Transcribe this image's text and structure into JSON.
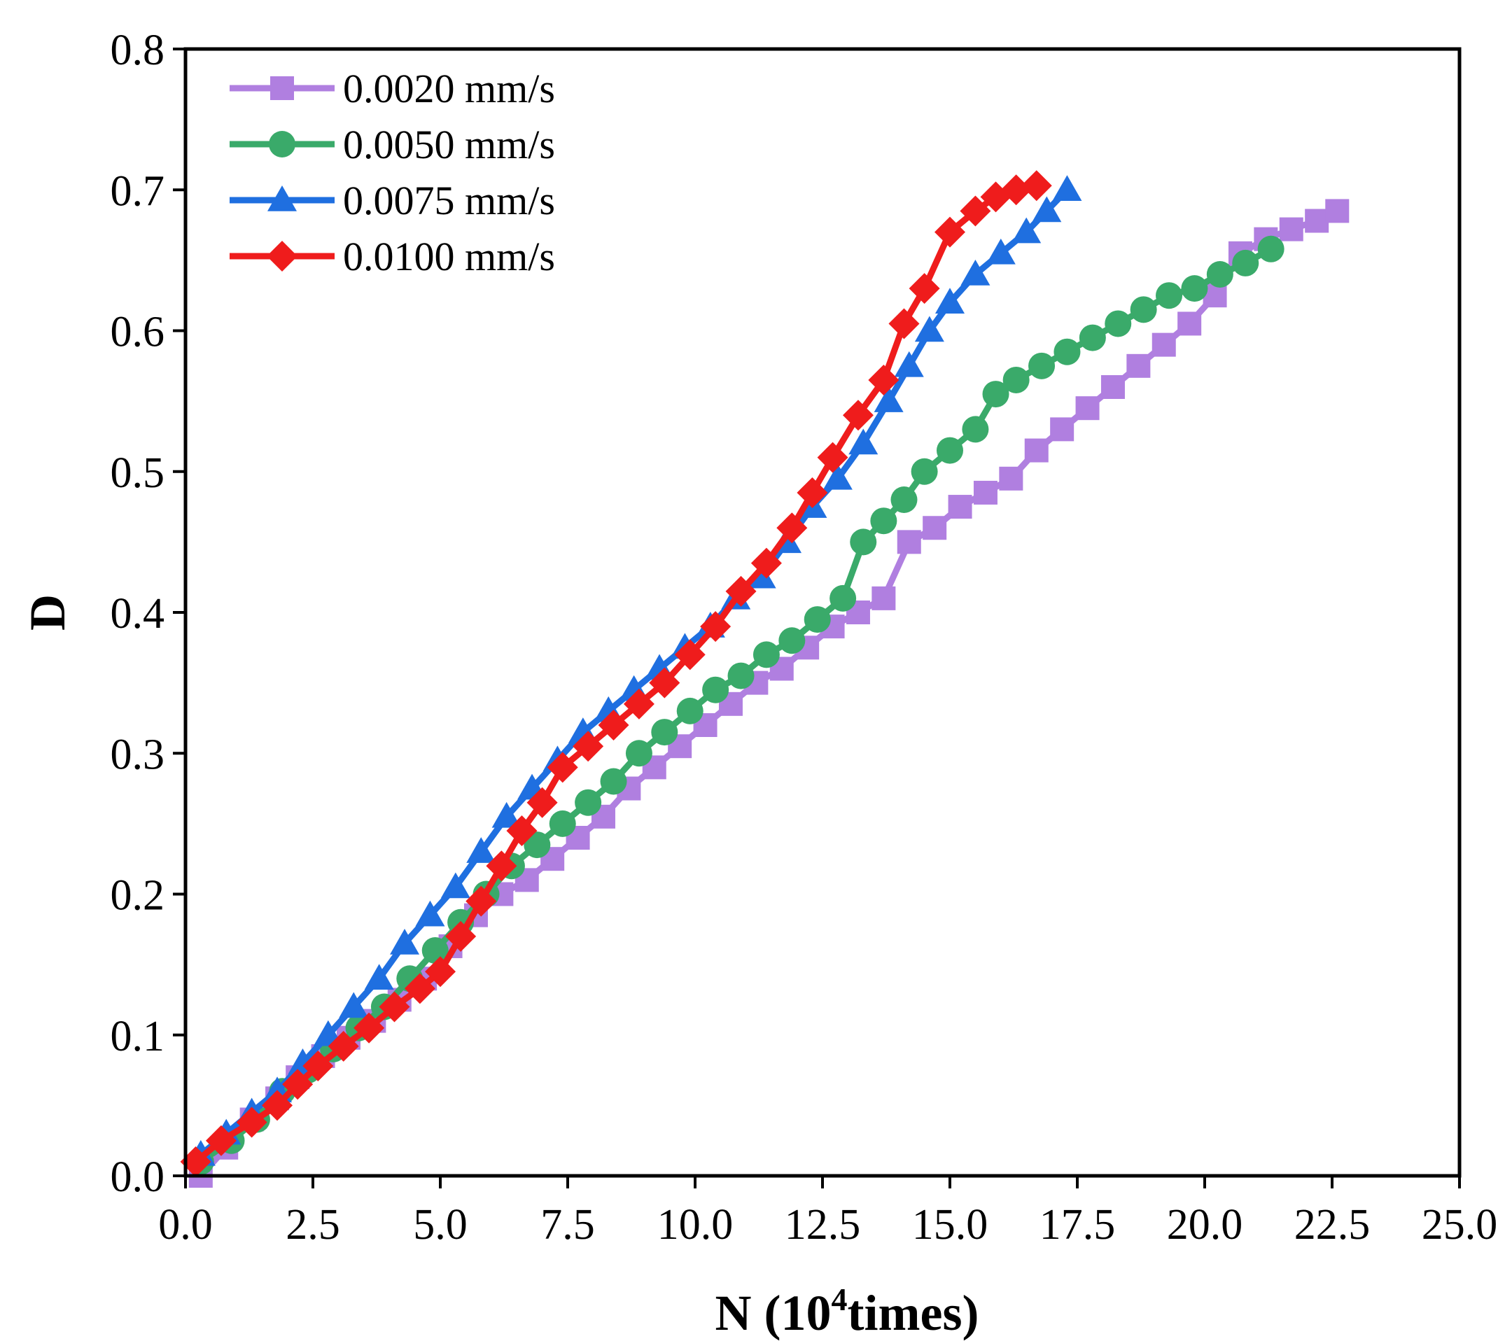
{
  "chart_data": {
    "type": "line",
    "title": "",
    "xlabel": {
      "prefix": "N (10",
      "sup": "4",
      "suffix": "times)"
    },
    "ylabel": "D",
    "xlim": [
      0,
      25
    ],
    "ylim": [
      0,
      0.8
    ],
    "xticks": [
      0,
      2.5,
      5,
      7.5,
      10,
      12.5,
      15,
      17.5,
      20,
      22.5,
      25
    ],
    "xtick_labels": [
      "0.0",
      "2.5",
      "5.0",
      "7.5",
      "10.0",
      "12.5",
      "15.0",
      "17.5",
      "20.0",
      "22.5",
      "25.0"
    ],
    "yticks": [
      0,
      0.1,
      0.2,
      0.3,
      0.4,
      0.5,
      0.6,
      0.7,
      0.8
    ],
    "ytick_labels": [
      "0.0",
      "0.1",
      "0.2",
      "0.3",
      "0.4",
      "0.5",
      "0.6",
      "0.7",
      "0.8"
    ],
    "grid": false,
    "legend_position": "top-left",
    "series": [
      {
        "name": "0.0020 mm/s",
        "color": "#b07fe0",
        "marker": "square",
        "x": [
          0.3,
          0.8,
          1.3,
          1.8,
          2.2,
          2.7,
          3.2,
          3.7,
          4.2,
          4.7,
          5.2,
          5.7,
          6.2,
          6.7,
          7.2,
          7.7,
          8.2,
          8.7,
          9.2,
          9.7,
          10.2,
          10.7,
          11.2,
          11.7,
          12.2,
          12.7,
          13.2,
          13.7,
          14.2,
          14.7,
          15.2,
          15.7,
          16.2,
          16.7,
          17.2,
          17.7,
          18.2,
          18.7,
          19.2,
          19.7,
          20.2,
          20.7,
          21.2,
          21.7,
          22.2,
          22.6
        ],
        "y": [
          0.0,
          0.02,
          0.04,
          0.055,
          0.07,
          0.085,
          0.098,
          0.11,
          0.125,
          0.14,
          0.163,
          0.185,
          0.2,
          0.21,
          0.225,
          0.24,
          0.255,
          0.275,
          0.29,
          0.305,
          0.32,
          0.335,
          0.35,
          0.36,
          0.375,
          0.39,
          0.4,
          0.41,
          0.45,
          0.46,
          0.475,
          0.485,
          0.495,
          0.515,
          0.53,
          0.545,
          0.56,
          0.575,
          0.59,
          0.605,
          0.625,
          0.655,
          0.665,
          0.672,
          0.678,
          0.685
        ]
      },
      {
        "name": "0.0050 mm/s",
        "color": "#3aaa6a",
        "marker": "circle",
        "x": [
          0.3,
          0.9,
          1.4,
          1.9,
          2.4,
          2.9,
          3.4,
          3.9,
          4.4,
          4.9,
          5.4,
          5.9,
          6.4,
          6.9,
          7.4,
          7.9,
          8.4,
          8.9,
          9.4,
          9.9,
          10.4,
          10.9,
          11.4,
          11.9,
          12.4,
          12.9,
          13.3,
          13.7,
          14.1,
          14.5,
          15.0,
          15.5,
          15.9,
          16.3,
          16.8,
          17.3,
          17.8,
          18.3,
          18.8,
          19.3,
          19.8,
          20.3,
          20.8,
          21.3
        ],
        "y": [
          0.01,
          0.025,
          0.04,
          0.06,
          0.075,
          0.09,
          0.105,
          0.12,
          0.14,
          0.16,
          0.18,
          0.2,
          0.22,
          0.235,
          0.25,
          0.265,
          0.28,
          0.3,
          0.315,
          0.33,
          0.345,
          0.355,
          0.37,
          0.38,
          0.395,
          0.41,
          0.45,
          0.465,
          0.48,
          0.5,
          0.515,
          0.53,
          0.555,
          0.565,
          0.575,
          0.585,
          0.595,
          0.605,
          0.615,
          0.625,
          0.63,
          0.64,
          0.648,
          0.658
        ]
      },
      {
        "name": "0.0075 mm/s",
        "color": "#1f6fe0",
        "marker": "triangle",
        "x": [
          0.3,
          0.8,
          1.3,
          1.8,
          2.3,
          2.8,
          3.3,
          3.8,
          4.3,
          4.8,
          5.3,
          5.8,
          6.3,
          6.8,
          7.3,
          7.8,
          8.3,
          8.8,
          9.3,
          9.8,
          10.3,
          10.8,
          11.3,
          11.8,
          12.3,
          12.8,
          13.3,
          13.8,
          14.2,
          14.6,
          15.0,
          15.5,
          16.0,
          16.5,
          16.9,
          17.3
        ],
        "y": [
          0.015,
          0.03,
          0.045,
          0.06,
          0.08,
          0.1,
          0.12,
          0.14,
          0.165,
          0.185,
          0.205,
          0.23,
          0.255,
          0.275,
          0.295,
          0.315,
          0.33,
          0.345,
          0.36,
          0.375,
          0.39,
          0.41,
          0.425,
          0.45,
          0.475,
          0.495,
          0.52,
          0.55,
          0.575,
          0.6,
          0.62,
          0.64,
          0.655,
          0.67,
          0.685,
          0.7
        ]
      },
      {
        "name": "0.0100 mm/s",
        "color": "#ef1c1c",
        "marker": "diamond",
        "x": [
          0.2,
          0.7,
          1.3,
          1.8,
          2.2,
          2.6,
          3.1,
          3.6,
          4.1,
          4.6,
          5.0,
          5.4,
          5.8,
          6.2,
          6.6,
          7.0,
          7.4,
          7.9,
          8.4,
          8.9,
          9.4,
          9.9,
          10.4,
          10.9,
          11.4,
          11.9,
          12.3,
          12.7,
          13.2,
          13.7,
          14.1,
          14.5,
          15.0,
          15.5,
          15.9,
          16.3,
          16.7
        ],
        "y": [
          0.01,
          0.025,
          0.038,
          0.05,
          0.065,
          0.078,
          0.092,
          0.105,
          0.12,
          0.133,
          0.145,
          0.17,
          0.195,
          0.22,
          0.245,
          0.265,
          0.29,
          0.305,
          0.32,
          0.335,
          0.35,
          0.37,
          0.39,
          0.415,
          0.435,
          0.46,
          0.485,
          0.51,
          0.54,
          0.565,
          0.605,
          0.63,
          0.67,
          0.685,
          0.695,
          0.7,
          0.703
        ]
      }
    ]
  }
}
